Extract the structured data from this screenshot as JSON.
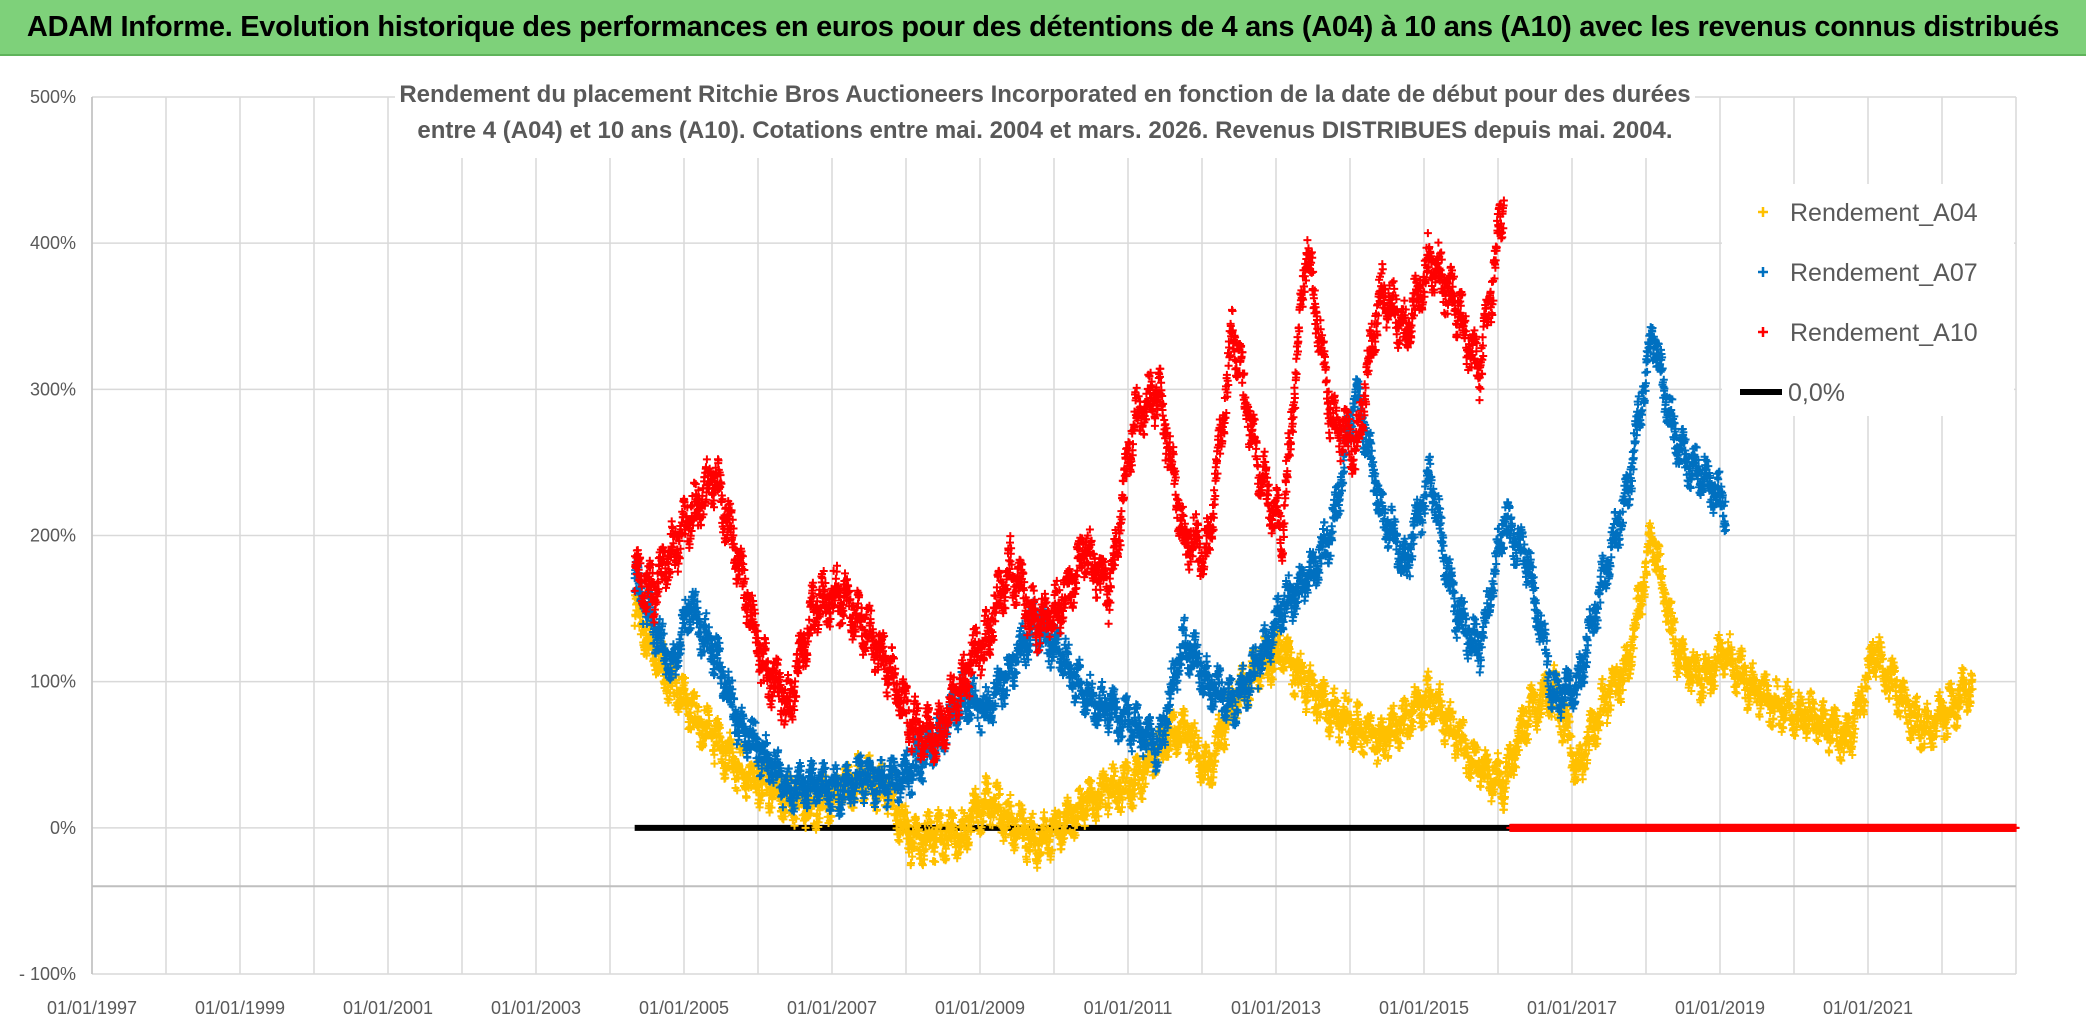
{
  "banner": {
    "title": "ADAM Informe. Evolution historique des performances en euros pour des détentions de 4 ans (A04) à 10 ans (A10) avec les revenus connus distribués"
  },
  "chart_data": {
    "type": "scatter",
    "title": [
      "Rendement du placement Ritchie Bros Auctioneers Incorporated en fonction de la date de début pour des durées",
      "entre 4 (A04) et 10 ans (A10). Cotations entre mai. 2004 et mars. 2026. Revenus DISTRIBUES depuis mai. 2004."
    ],
    "xlabel": "",
    "ylabel": "",
    "x_axis": {
      "type": "date",
      "range": [
        "1997-01-01",
        "2023-01-01"
      ],
      "tick_labels": [
        "01/01/1997",
        "01/01/1999",
        "01/01/2001",
        "01/01/2003",
        "01/01/2005",
        "01/01/2007",
        "01/01/2009",
        "01/01/2011",
        "01/01/2013",
        "01/01/2015",
        "01/01/2017",
        "01/01/2019",
        "01/01/2021"
      ],
      "gridlines_every": "1 year"
    },
    "y_axis": {
      "range": [
        -100,
        500
      ],
      "unit": "%",
      "tick_values": [
        -100,
        0,
        100,
        200,
        300,
        400,
        500
      ],
      "tick_labels": [
        "- 100%",
        "0%",
        "100%",
        "200%",
        "300%",
        "400%",
        "500%"
      ],
      "extra_gridline": -40
    },
    "grid": true,
    "legend_position": "right",
    "series": [
      {
        "name": "Rendement_A04",
        "color": "#ffc000",
        "marker": "plus",
        "x": [
          "2004-05",
          "2004-08",
          "2004-11",
          "2005-02",
          "2005-06",
          "2005-10",
          "2006-02",
          "2006-06",
          "2006-10",
          "2007-02",
          "2007-06",
          "2007-10",
          "2008-02",
          "2008-06",
          "2008-10",
          "2009-02",
          "2009-06",
          "2009-10",
          "2010-02",
          "2010-06",
          "2010-10",
          "2011-02",
          "2011-06",
          "2011-10",
          "2012-02",
          "2012-06",
          "2012-10",
          "2013-02",
          "2013-06",
          "2013-10",
          "2014-02",
          "2014-06",
          "2014-10",
          "2015-02",
          "2015-06",
          "2015-10",
          "2016-02",
          "2016-06",
          "2016-10",
          "2017-02",
          "2017-06",
          "2017-10",
          "2018-02",
          "2018-06",
          "2018-10",
          "2019-02",
          "2019-06",
          "2019-10",
          "2020-02",
          "2020-06",
          "2020-10",
          "2021-02",
          "2021-06",
          "2021-10",
          "2022-02",
          "2022-06"
        ],
        "values": [
          150,
          120,
          100,
          80,
          60,
          40,
          30,
          20,
          15,
          25,
          35,
          25,
          -10,
          -5,
          -5,
          20,
          5,
          -10,
          0,
          15,
          25,
          30,
          55,
          70,
          40,
          85,
          110,
          120,
          95,
          80,
          70,
          60,
          75,
          90,
          65,
          40,
          30,
          80,
          95,
          40,
          85,
          110,
          200,
          120,
          100,
          120,
          95,
          85,
          80,
          70,
          60,
          120,
          90,
          65,
          80,
          100
        ]
      },
      {
        "name": "Rendement_A07",
        "color": "#0070c0",
        "marker": "plus",
        "x": [
          "2004-05",
          "2004-08",
          "2004-11",
          "2005-02",
          "2005-06",
          "2005-10",
          "2006-02",
          "2006-06",
          "2006-10",
          "2007-02",
          "2007-06",
          "2007-10",
          "2008-02",
          "2008-06",
          "2008-10",
          "2009-02",
          "2009-06",
          "2009-10",
          "2010-02",
          "2010-06",
          "2010-10",
          "2011-02",
          "2011-06",
          "2011-10",
          "2012-02",
          "2012-06",
          "2012-10",
          "2013-02",
          "2013-06",
          "2013-10",
          "2014-02",
          "2014-06",
          "2014-10",
          "2015-02",
          "2015-06",
          "2015-10",
          "2016-02",
          "2016-06",
          "2016-10",
          "2017-02",
          "2017-06",
          "2017-10",
          "2018-02",
          "2018-06",
          "2018-10",
          "2019-02"
        ],
        "values": [
          170,
          140,
          110,
          150,
          120,
          70,
          50,
          25,
          30,
          25,
          35,
          30,
          40,
          60,
          90,
          80,
          110,
          140,
          120,
          90,
          80,
          70,
          55,
          130,
          100,
          85,
          110,
          150,
          170,
          200,
          300,
          220,
          180,
          240,
          150,
          120,
          210,
          180,
          90,
          100,
          170,
          230,
          340,
          260,
          240,
          220
        ]
      },
      {
        "name": "Rendement_A10",
        "color": "#ff0000",
        "marker": "plus",
        "x": [
          "2004-05",
          "2004-08",
          "2004-11",
          "2005-02",
          "2005-06",
          "2005-10",
          "2006-02",
          "2006-06",
          "2006-10",
          "2007-02",
          "2007-06",
          "2007-10",
          "2008-02",
          "2008-06",
          "2008-10",
          "2009-02",
          "2009-06",
          "2009-10",
          "2010-02",
          "2010-06",
          "2010-10",
          "2011-02",
          "2011-06",
          "2011-10",
          "2012-02",
          "2012-06",
          "2012-10",
          "2013-02",
          "2013-06",
          "2013-10",
          "2014-02",
          "2014-06",
          "2014-10",
          "2015-02",
          "2015-06",
          "2015-10",
          "2016-02"
        ],
        "values": [
          175,
          160,
          190,
          210,
          240,
          180,
          110,
          85,
          150,
          160,
          140,
          110,
          70,
          60,
          100,
          130,
          180,
          140,
          150,
          190,
          160,
          280,
          300,
          200,
          190,
          340,
          250,
          200,
          400,
          280,
          260,
          370,
          340,
          390,
          360,
          310,
          430
        ]
      },
      {
        "name": "0,0%",
        "color": "#000000",
        "marker": "line",
        "x": [
          "2004-05",
          "2016-03"
        ],
        "values": [
          0,
          0
        ]
      }
    ],
    "zero_marker_series": {
      "color": "#ff0000",
      "x_range": [
        "2016-03",
        "2023-01"
      ],
      "value": 0
    }
  }
}
